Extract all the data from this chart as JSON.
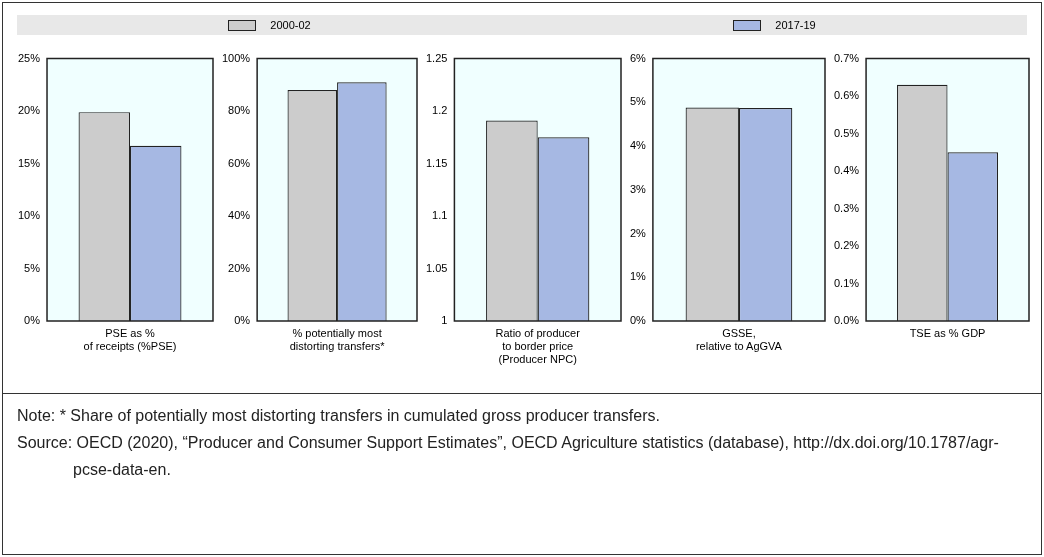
{
  "chart_data": [
    {
      "type": "bar",
      "categories": [
        "PSE as %\nof receipts (%PSE)"
      ],
      "series": [
        {
          "name": "2000-02",
          "color": "#cccccc",
          "values": [
            19.9
          ]
        },
        {
          "name": "2017-19",
          "color": "#a6b8e3",
          "values": [
            16.7
          ]
        }
      ],
      "ylim": [
        0,
        25
      ],
      "yticks": [
        {
          "value": 0,
          "label": "0%"
        },
        {
          "value": 5,
          "label": "5%"
        },
        {
          "value": 10,
          "label": "10%"
        },
        {
          "value": 15,
          "label": "15%"
        },
        {
          "value": 20,
          "label": "20%"
        },
        {
          "value": 25,
          "label": "25%"
        }
      ],
      "grid": false,
      "legend": "top",
      "annotations": [
        "Note: * Share of potentially most distorting transfers in cumulated gross producer transfers.",
        "Source: OECD (2020), “Producer and Consumer Support Estimates”, OECD Agriculture statistics (database), http://dx.doi.org/10.1787/agr-pcse-data-en."
      ]
    },
    {
      "type": "bar",
      "categories": [
        "% potentially most\ndistorting transfers*"
      ],
      "series": [
        {
          "color": "#cccccc",
          "values": [
            88
          ]
        },
        {
          "color": "#a6b8e3",
          "values": [
            91
          ]
        }
      ],
      "ylim": [
        0,
        100
      ],
      "yticks": [
        {
          "value": 0,
          "label": "0%"
        },
        {
          "value": 20,
          "label": "20%"
        },
        {
          "value": 40,
          "label": "40%"
        },
        {
          "value": 60,
          "label": "60%"
        },
        {
          "value": 80,
          "label": "80%"
        },
        {
          "value": 100,
          "label": "100%"
        }
      ],
      "grid": false
    },
    {
      "type": "bar",
      "categories": [
        "Ratio of producer\nto border price\n(Producer NPC)"
      ],
      "series": [
        {
          "color": "#cccccc",
          "values": [
            1.191
          ]
        },
        {
          "color": "#a6b8e3",
          "values": [
            1.175
          ]
        }
      ],
      "ylim": [
        1,
        1.25
      ],
      "yticks": [
        1,
        1.05,
        1.1,
        1.15,
        1.2,
        1.25
      ],
      "grid": false
    },
    {
      "type": "bar",
      "categories": [
        "GSSE,\nrelative to AgGVA"
      ],
      "series": [
        {
          "color": "#cccccc",
          "values": [
            4.88
          ]
        },
        {
          "color": "#a6b8e3",
          "values": [
            4.87
          ]
        }
      ],
      "ylim": [
        0,
        6
      ],
      "yticks": [
        {
          "value": 0,
          "label": "0%"
        },
        {
          "value": 1,
          "label": "1%"
        },
        {
          "value": 2,
          "label": "2%"
        },
        {
          "value": 3,
          "label": "3%"
        },
        {
          "value": 4,
          "label": "4%"
        },
        {
          "value": 5,
          "label": "5%"
        },
        {
          "value": 6,
          "label": "6%"
        }
      ],
      "grid": false
    },
    {
      "type": "bar",
      "categories": [
        "TSE as % GDP"
      ],
      "series": [
        {
          "color": "#cccccc",
          "values": [
            0.63
          ]
        },
        {
          "color": "#a6b8e3",
          "values": [
            0.45
          ]
        }
      ],
      "ylim": [
        0,
        0.7
      ],
      "yticks": [
        {
          "value": 0,
          "label": "0.0%"
        },
        {
          "value": 0.1,
          "label": "0.1%"
        },
        {
          "value": 0.2,
          "label": "0.2%"
        },
        {
          "value": 0.3,
          "label": "0.3%"
        },
        {
          "value": 0.4,
          "label": "0.4%"
        },
        {
          "value": 0.5,
          "label": "0.5%"
        },
        {
          "value": 0.6,
          "label": "0.6%"
        },
        {
          "value": 0.7,
          "label": "0.7%"
        }
      ],
      "grid": false
    }
  ]
}
